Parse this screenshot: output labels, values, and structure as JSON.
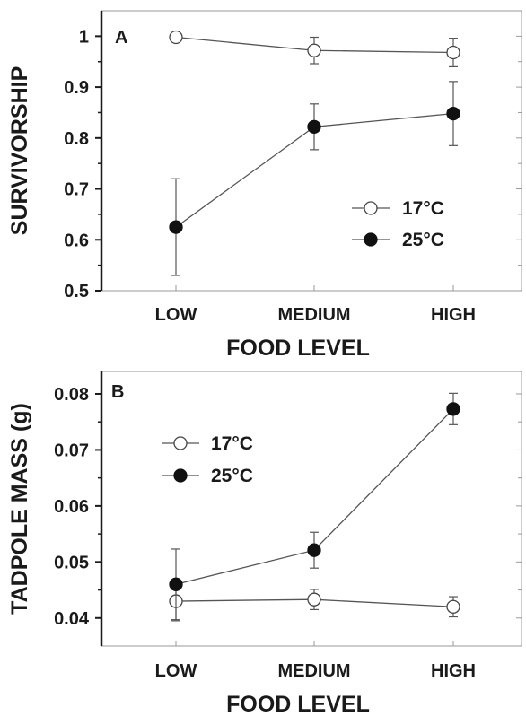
{
  "chart_data": [
    {
      "type": "line",
      "panel": "A",
      "categories": [
        "LOW",
        "MEDIUM",
        "HIGH"
      ],
      "xlabel": "FOOD LEVEL",
      "ylabel": "SURVIVORSHIP",
      "ylim": [
        0.5,
        1.05
      ],
      "yticks": [
        "0.5",
        "0.6",
        "0.7",
        "0.8",
        "0.9",
        "1"
      ],
      "yticks_values": [
        0.5,
        0.6,
        0.7,
        0.8,
        0.9,
        1.0
      ],
      "grid": false,
      "legend": "center-right",
      "series": [
        {
          "name": "17°C",
          "marker": "open-circle",
          "values": [
            0.998,
            0.972,
            0.968
          ],
          "err": [
            0.0,
            0.026,
            0.028
          ]
        },
        {
          "name": "25°C",
          "marker": "filled-circle",
          "values": [
            0.625,
            0.822,
            0.848
          ],
          "err": [
            0.095,
            0.045,
            0.063
          ]
        }
      ]
    },
    {
      "type": "line",
      "panel": "B",
      "categories": [
        "LOW",
        "MEDIUM",
        "HIGH"
      ],
      "xlabel": "FOOD LEVEL",
      "ylabel": "TADPOLE MASS (g)",
      "ylim": [
        0.035,
        0.084
      ],
      "yticks": [
        "0.04",
        "0.05",
        "0.06",
        "0.07",
        "0.08"
      ],
      "yticks_values": [
        0.04,
        0.05,
        0.06,
        0.07,
        0.08
      ],
      "grid": false,
      "legend": "upper-left",
      "series": [
        {
          "name": "17°C",
          "marker": "open-circle",
          "values": [
            0.043,
            0.0433,
            0.042
          ],
          "err": [
            0.0035,
            0.0018,
            0.0018
          ]
        },
        {
          "name": "25°C",
          "marker": "filled-circle",
          "values": [
            0.046,
            0.0521,
            0.0773
          ],
          "err": [
            0.0063,
            0.0032,
            0.0028
          ]
        }
      ]
    }
  ]
}
